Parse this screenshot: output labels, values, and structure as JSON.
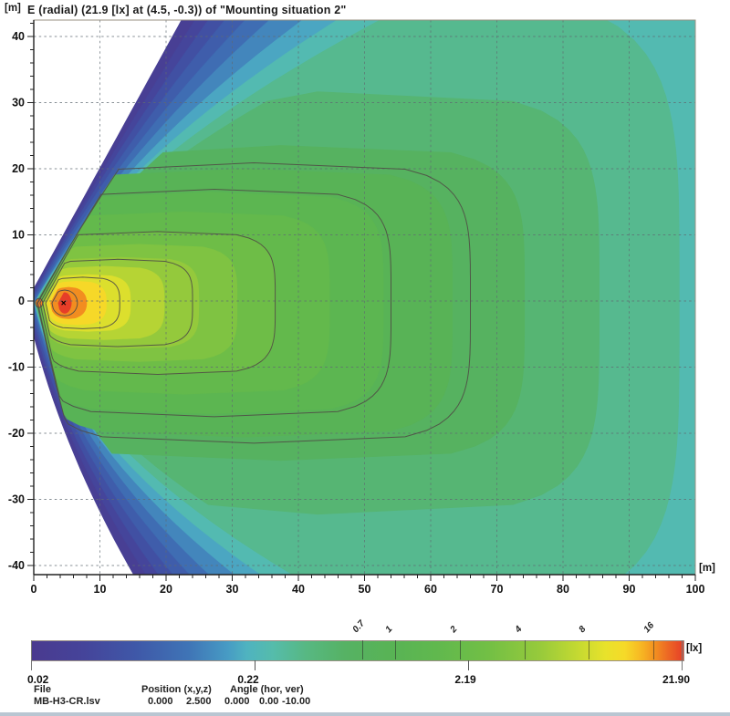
{
  "header": {
    "unit_label": "[m]",
    "title": "E (radial) (21.9 [lx] at (4.5, -0.3)) of \"Mounting situation  2\""
  },
  "axes": {
    "x": {
      "unit": "[m]",
      "min": 0,
      "max": 100,
      "ticks": [
        0,
        10,
        20,
        30,
        40,
        50,
        60,
        70,
        80,
        90,
        100
      ],
      "minor_step": 2
    },
    "y": {
      "unit": "[m]",
      "min": -41.4,
      "max": 42.5,
      "ticks": [
        -40,
        -30,
        -20,
        -10,
        0,
        10,
        20,
        30,
        40
      ],
      "minor_step": 2
    }
  },
  "chart_data": {
    "type": "heatmap",
    "subtype": "isolux-contour-map",
    "title": "E (radial) (21.9 [lx] at (4.5, -0.3)) of \"Mounting situation  2\"",
    "xlabel": "[m]",
    "ylabel": "[m]",
    "value_unit": "[lx]",
    "x_range": [
      0,
      100
    ],
    "y_range": [
      -41.4,
      42.5
    ],
    "grid": true,
    "grid_step": 10,
    "scale": "log",
    "value_range": [
      0.02,
      21.9
    ],
    "max_point": {
      "x": 4.5,
      "y": -0.3,
      "value": 21.9,
      "marker": "x"
    },
    "contour_line_levels": [
      0.7,
      1,
      2,
      4,
      8,
      16
    ],
    "contour_y0_right_extents": {
      "0.7": 66,
      "1": 54,
      "2": 36.5,
      "4": 24,
      "8": 13,
      "16": 6.6
    },
    "fill_bands": {
      "count": 22,
      "min": 0.022,
      "max": 19
    },
    "beam": {
      "center_y": -0.3,
      "fan_slope_up": 0.55,
      "fan_slope_down": 0.22
    },
    "shape_anchors": [
      {
        "L": 21.9,
        "tip": 4.5,
        "xr": 4.9,
        "yt": 1.25,
        "n": 1.8,
        "cU": 0,
        "cD": 0
      },
      {
        "L": 16,
        "tip": 2.75,
        "xr": 6.6,
        "yt": 1.95,
        "n": 2.0,
        "cU": 0,
        "cD": 0
      },
      {
        "L": 8,
        "tip": 1.8,
        "xr": 13,
        "yt": 3.9,
        "n": 3.2,
        "cU": 0,
        "cD": 0
      },
      {
        "L": 4,
        "tip": 1.35,
        "xr": 24,
        "yt": 6.6,
        "n": 3.9,
        "cU": 0,
        "cD": 0
      },
      {
        "L": 2,
        "tip": 0.95,
        "xr": 36.5,
        "yt": 10.8,
        "n": 4.3,
        "cU": 0.001,
        "cD": 0.0005
      },
      {
        "L": 1,
        "tip": 0.6,
        "xr": 54,
        "yt": 17.2,
        "n": 4.6,
        "cU": 0.002,
        "cD": 0.001
      },
      {
        "L": 0.7,
        "tip": 0.5,
        "xr": 66,
        "yt": 21.2,
        "n": 4.6,
        "cU": 0.003,
        "cD": 0.001
      },
      {
        "L": 0.45,
        "tip": 0.35,
        "xr": 81,
        "yt": 26,
        "n": 4.6,
        "cU": 0.021,
        "cD": 0.022
      },
      {
        "L": 0.3,
        "tip": 0.25,
        "xr": 96,
        "yt": 46,
        "n": 4.4,
        "cU": 0.016,
        "cD": 0.018
      },
      {
        "L": 0.2,
        "tip": 0.15,
        "xr": 113,
        "yt": 56,
        "n": 4.2,
        "cU": 0.0116,
        "cD": 0.0145
      },
      {
        "L": 0.1,
        "tip": 0,
        "xr": 155,
        "yt": 75,
        "n": 4.0,
        "cU": 0.0058,
        "cD": 0.0097
      },
      {
        "L": 0.05,
        "tip": -0.6,
        "xr": 230,
        "yt": 95,
        "n": 4.0,
        "cU": 0.0025,
        "cD": 0.0068
      },
      {
        "L": 0.022,
        "tip": -1.2,
        "xr": 340,
        "yt": 120,
        "n": 4.0,
        "cU": 0,
        "cD": 0.0043
      }
    ],
    "secondary_hotspot": {
      "x": 0.8,
      "y": -0.3,
      "rx": 0.55,
      "ry": 0.68,
      "level": 17
    },
    "colormap_stops": [
      [
        0.0,
        "#4a3a8f"
      ],
      [
        0.08,
        "#45449a"
      ],
      [
        0.16,
        "#3f58a8"
      ],
      [
        0.24,
        "#3f74b6"
      ],
      [
        0.3,
        "#479bc4"
      ],
      [
        0.33,
        "#4fb3c0"
      ],
      [
        0.37,
        "#55bcab"
      ],
      [
        0.42,
        "#57b883"
      ],
      [
        0.48,
        "#56b264"
      ],
      [
        0.55,
        "#58b355"
      ],
      [
        0.62,
        "#60b84e"
      ],
      [
        0.7,
        "#72bf45"
      ],
      [
        0.78,
        "#97ca3b"
      ],
      [
        0.84,
        "#c6da31"
      ],
      [
        0.88,
        "#e8e22b"
      ],
      [
        0.91,
        "#f6da28"
      ],
      [
        0.935,
        "#f7b723"
      ],
      [
        0.955,
        "#f39220"
      ],
      [
        0.975,
        "#ed6a24"
      ],
      [
        1.0,
        "#e63e28"
      ]
    ]
  },
  "colorbar": {
    "min": 0.02,
    "max": 21.9,
    "unit": "[lx]",
    "top_tick_values": [
      0.7,
      1,
      2,
      4,
      8,
      16
    ],
    "top_tick_labels": [
      "0.7",
      "1",
      "2",
      "4",
      "8",
      "16"
    ],
    "bottom_tick_values": [
      0.22,
      2.19
    ],
    "bottom_labels": [
      "0.02",
      "0.22",
      "2.19",
      "21.90"
    ]
  },
  "footer": {
    "file_label": "File",
    "file_value": "MB-H3-CR.lsv",
    "position_label": "Position (x,y,z)",
    "position_values": [
      "0.000",
      "2.500",
      "0.000"
    ],
    "angle_label": "Angle (hor, ver)",
    "angle_values": [
      "0.00",
      "-10.00"
    ]
  }
}
